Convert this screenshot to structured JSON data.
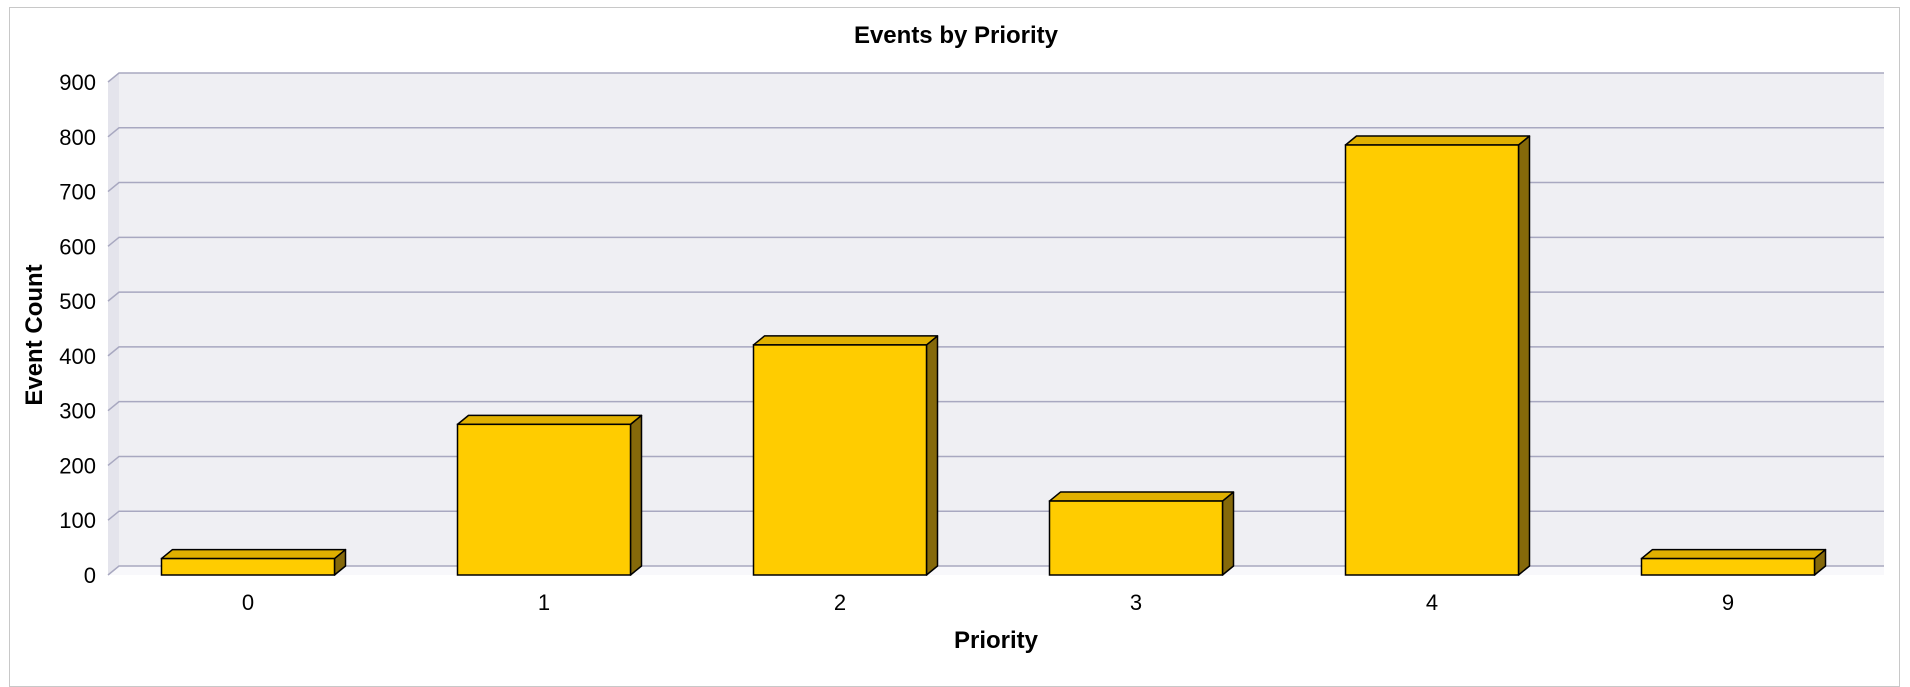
{
  "chart_data": {
    "type": "bar",
    "title": "Events by Priority",
    "xlabel": "Priority",
    "ylabel": "Event Count",
    "categories": [
      "0",
      "1",
      "2",
      "3",
      "4",
      "9"
    ],
    "values": [
      30,
      275,
      420,
      135,
      785,
      30
    ],
    "ylim": [
      0,
      900
    ],
    "yticks": [
      0,
      100,
      200,
      300,
      400,
      500,
      600,
      700,
      800,
      900
    ],
    "grid": true,
    "legend": "none",
    "colors": {
      "bar_front": "#ffcc00",
      "bar_top": "#e0b000",
      "bar_side": "#85690a",
      "bar_stroke": "#000000",
      "plot_bg": "#efeff3",
      "floor": "#f8f8fb",
      "grid": "#a8a8c0"
    }
  }
}
